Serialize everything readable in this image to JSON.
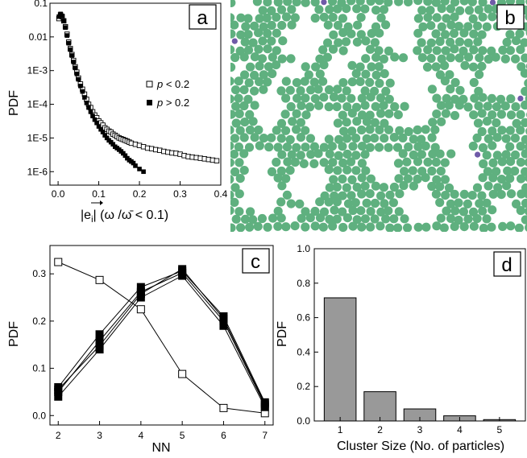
{
  "chart_data": [
    {
      "panel": "a",
      "type": "scatter",
      "ylabel": "PDF",
      "xlabel_main": "|e",
      "xlabel_sub": "i",
      "xlabel_cond": "| (ω /ω̄ < 0.1)",
      "xlim": [
        -0.02,
        0.4
      ],
      "ylim_log10": [
        -6.4,
        -1.0
      ],
      "yscale": "log",
      "x_ticks": [
        "0.0",
        "0.1",
        "0.2",
        "0.3",
        "0.4"
      ],
      "y_ticks": [
        "0.1",
        "0.01",
        "1E-3",
        "1E-4",
        "1E-5",
        "1E-6"
      ],
      "legend_position": "right",
      "series": [
        {
          "name": "p < 0.2",
          "label_var": "p",
          "label_rest": " < 0.2",
          "marker": "open-square",
          "x": [
            0.002,
            0.006,
            0.01,
            0.014,
            0.018,
            0.022,
            0.026,
            0.03,
            0.034,
            0.038,
            0.042,
            0.046,
            0.05,
            0.055,
            0.06,
            0.065,
            0.07,
            0.075,
            0.08,
            0.085,
            0.09,
            0.095,
            0.1,
            0.105,
            0.11,
            0.115,
            0.12,
            0.125,
            0.13,
            0.135,
            0.14,
            0.145,
            0.15,
            0.155,
            0.16,
            0.165,
            0.17,
            0.175,
            0.18,
            0.19,
            0.2,
            0.21,
            0.22,
            0.23,
            0.24,
            0.25,
            0.26,
            0.27,
            0.28,
            0.29,
            0.3,
            0.31,
            0.32,
            0.33,
            0.34,
            0.35,
            0.36,
            0.37,
            0.38,
            0.39
          ],
          "y": [
            0.035,
            0.045,
            0.04,
            0.03,
            0.02,
            0.012,
            0.007,
            0.0045,
            0.003,
            0.002,
            0.0013,
            0.0009,
            0.0006,
            0.0004,
            0.00028,
            0.0002,
            0.00014,
            0.0001,
            8e-05,
            6e-05,
            4.8e-05,
            4e-05,
            3.2e-05,
            2.8e-05,
            2.4e-05,
            2e-05,
            1.8e-05,
            1.6e-05,
            1.5e-05,
            1.3e-05,
            1.2e-05,
            1.1e-05,
            1e-05,
            9.5e-06,
            9e-06,
            8.5e-06,
            8e-06,
            7.5e-06,
            7e-06,
            6.5e-06,
            6e-06,
            5.5e-06,
            5e-06,
            4.8e-06,
            4.5e-06,
            4.3e-06,
            4e-06,
            3.8e-06,
            3.6e-06,
            3.5e-06,
            3.3e-06,
            3e-06,
            2.8e-06,
            2.7e-06,
            2.6e-06,
            2.5e-06,
            2.4e-06,
            2.3e-06,
            2.2e-06,
            2.1e-06
          ]
        },
        {
          "name": "p > 0.2",
          "label_var": "p",
          "label_rest": " > 0.2",
          "marker": "filled-square",
          "x": [
            0.002,
            0.006,
            0.01,
            0.014,
            0.018,
            0.022,
            0.026,
            0.03,
            0.034,
            0.038,
            0.042,
            0.046,
            0.05,
            0.055,
            0.06,
            0.065,
            0.07,
            0.075,
            0.08,
            0.085,
            0.09,
            0.095,
            0.1,
            0.105,
            0.11,
            0.115,
            0.12,
            0.125,
            0.13,
            0.135,
            0.14,
            0.145,
            0.15,
            0.155,
            0.16,
            0.165,
            0.17,
            0.175,
            0.18,
            0.185,
            0.19,
            0.2,
            0.21
          ],
          "y": [
            0.04,
            0.048,
            0.042,
            0.03,
            0.019,
            0.011,
            0.0065,
            0.0042,
            0.0028,
            0.0018,
            0.0012,
            0.0008,
            0.00055,
            0.00035,
            0.00024,
            0.00016,
            0.00011,
            8e-05,
            6e-05,
            4.5e-05,
            3.5e-05,
            2.8e-05,
            2.2e-05,
            1.8e-05,
            1.5e-05,
            1.2e-05,
            1e-05,
            8.5e-06,
            7.5e-06,
            6.5e-06,
            5.5e-06,
            5e-06,
            4.5e-06,
            4e-06,
            3.5e-06,
            3e-06,
            2.5e-06,
            2.2e-06,
            2e-06,
            1.8e-06,
            1.5e-06,
            1.2e-06,
            1e-06
          ]
        }
      ]
    },
    {
      "panel": "b",
      "type": "image",
      "description_colors": {
        "particle": "#5fb07f",
        "defect": "#6f5aa8",
        "background": "#ffffff"
      }
    },
    {
      "panel": "c",
      "type": "line",
      "xlabel": "NN",
      "ylabel": "PDF",
      "xlim": [
        1.8,
        7.2
      ],
      "ylim": [
        -0.02,
        0.36
      ],
      "x_ticks": [
        "2",
        "3",
        "4",
        "5",
        "6",
        "7"
      ],
      "y_ticks": [
        "0.0",
        "0.1",
        "0.2",
        "0.3"
      ],
      "x": [
        2,
        3,
        4,
        5,
        6,
        7
      ],
      "series": [
        {
          "marker": "open-square",
          "values": [
            0.325,
            0.287,
            0.225,
            0.088,
            0.016,
            0.005
          ]
        },
        {
          "marker": "filled-square",
          "values": [
            0.06,
            0.172,
            0.272,
            0.306,
            0.21,
            0.028
          ]
        },
        {
          "marker": "filled-square",
          "values": [
            0.05,
            0.158,
            0.262,
            0.302,
            0.2,
            0.022
          ]
        },
        {
          "marker": "filled-square",
          "values": [
            0.04,
            0.14,
            0.25,
            0.296,
            0.19,
            0.018
          ]
        },
        {
          "marker": "filled-square",
          "values": [
            0.055,
            0.148,
            0.258,
            0.31,
            0.205,
            0.025
          ]
        }
      ]
    },
    {
      "panel": "d",
      "type": "bar",
      "xlabel": "Cluster Size (No. of particles)",
      "ylabel": "PDF",
      "ylim": [
        0,
        1.0
      ],
      "y_ticks": [
        "0.0",
        "0.2",
        "0.4",
        "0.6",
        "0.8",
        "1.0"
      ],
      "categories": [
        "1",
        "2",
        "3",
        "4",
        "5"
      ],
      "values": [
        0.715,
        0.17,
        0.07,
        0.03,
        0.008
      ],
      "bar_color": "#999999"
    }
  ],
  "panel_labels": [
    "a",
    "b",
    "c",
    "d"
  ]
}
